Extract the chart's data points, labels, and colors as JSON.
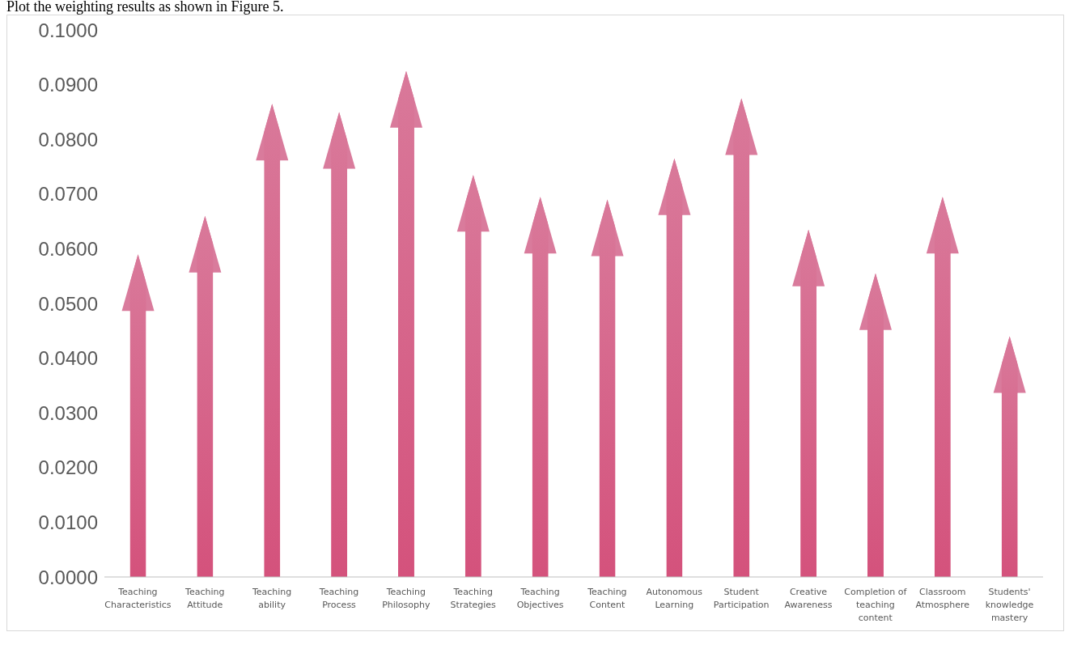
{
  "chart_data": {
    "type": "bar",
    "annotations": [
      "Plot the weighting results as shown in Figure 5."
    ],
    "categories": [
      "Teaching Characteristics",
      "Teaching Attitude",
      "Teaching ability",
      "Teaching Process",
      "Teaching Philosophy",
      "Teaching Strategies",
      "Teaching Objectives",
      "Teaching Content",
      "Autonomous Learning",
      "Student Participation",
      "Creative Awareness",
      "Completion of teaching content",
      "Classroom Atmosphere",
      "Students' knowledge mastery"
    ],
    "values": [
      0.059,
      0.066,
      0.0865,
      0.085,
      0.0925,
      0.0735,
      0.0695,
      0.069,
      0.0765,
      0.0875,
      0.0635,
      0.0555,
      0.0695,
      0.044
    ],
    "color": "#d4527c",
    "ylim": [
      0,
      0.1
    ],
    "yticks": [
      {
        "value": 0,
        "label": "0.0000"
      },
      {
        "value": 0.01,
        "label": "0.0100"
      },
      {
        "value": 0.02,
        "label": "0.0200"
      },
      {
        "value": 0.03,
        "label": "0.0300"
      },
      {
        "value": 0.04,
        "label": "0.0400"
      },
      {
        "value": 0.05,
        "label": "0.0500"
      },
      {
        "value": 0.06,
        "label": "0.0600"
      },
      {
        "value": 0.07,
        "label": "0.0700"
      },
      {
        "value": 0.08,
        "label": "0.0800"
      },
      {
        "value": 0.09,
        "label": "0.0900"
      },
      {
        "value": 0.1,
        "label": "0.1000"
      }
    ],
    "grid": false,
    "legend": false
  }
}
